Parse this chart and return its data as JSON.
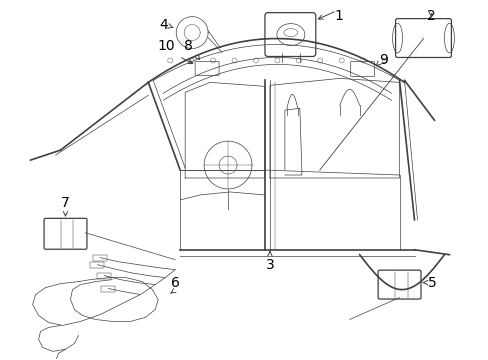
{
  "bg_color": "#ffffff",
  "line_color": "#404040",
  "lw_main": 0.9,
  "lw_thin": 0.5,
  "lw_thick": 1.2,
  "fig_width": 4.89,
  "fig_height": 3.6,
  "dpi": 100
}
